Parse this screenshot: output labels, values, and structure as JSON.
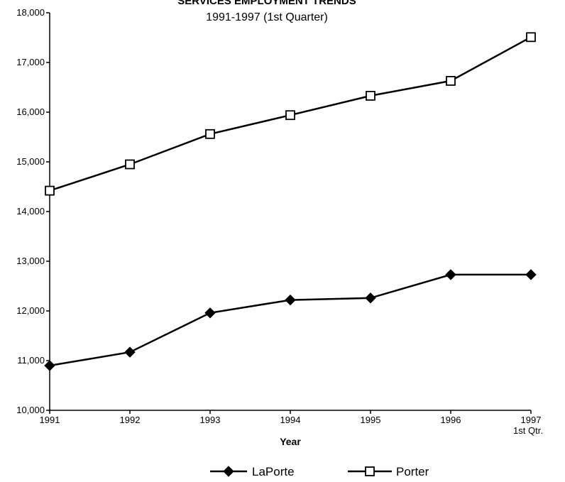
{
  "chart_data": {
    "type": "line",
    "title": "SERVICES EMPLOYMENT TRENDS",
    "subtitle": "1991-1997 (1st Quarter)",
    "xlabel": "Year",
    "ylabel": "",
    "categories": [
      "1991",
      "1992",
      "1993",
      "1994",
      "1995",
      "1996",
      "1997"
    ],
    "category_sublabels": [
      "",
      "",
      "",
      "",
      "",
      "",
      "1st Qtr."
    ],
    "ylim": [
      10000,
      18000
    ],
    "yticks": [
      "10,000",
      "11,000",
      "12,000",
      "13,000",
      "14,000",
      "15,000",
      "16,000",
      "17,000",
      "18,000"
    ],
    "ytick_values": [
      10000,
      11000,
      12000,
      13000,
      14000,
      15000,
      16000,
      17000,
      18000
    ],
    "grid": false,
    "legend_position": "bottom",
    "series": [
      {
        "name": "LaPorte",
        "marker": "filled-diamond",
        "color": "#000000",
        "values": [
          10900,
          11170,
          11960,
          12220,
          12260,
          12730,
          12730
        ]
      },
      {
        "name": "Porter",
        "marker": "open-square",
        "color": "#000000",
        "values": [
          14420,
          14950,
          15560,
          15940,
          16330,
          16630,
          17510
        ]
      }
    ]
  }
}
